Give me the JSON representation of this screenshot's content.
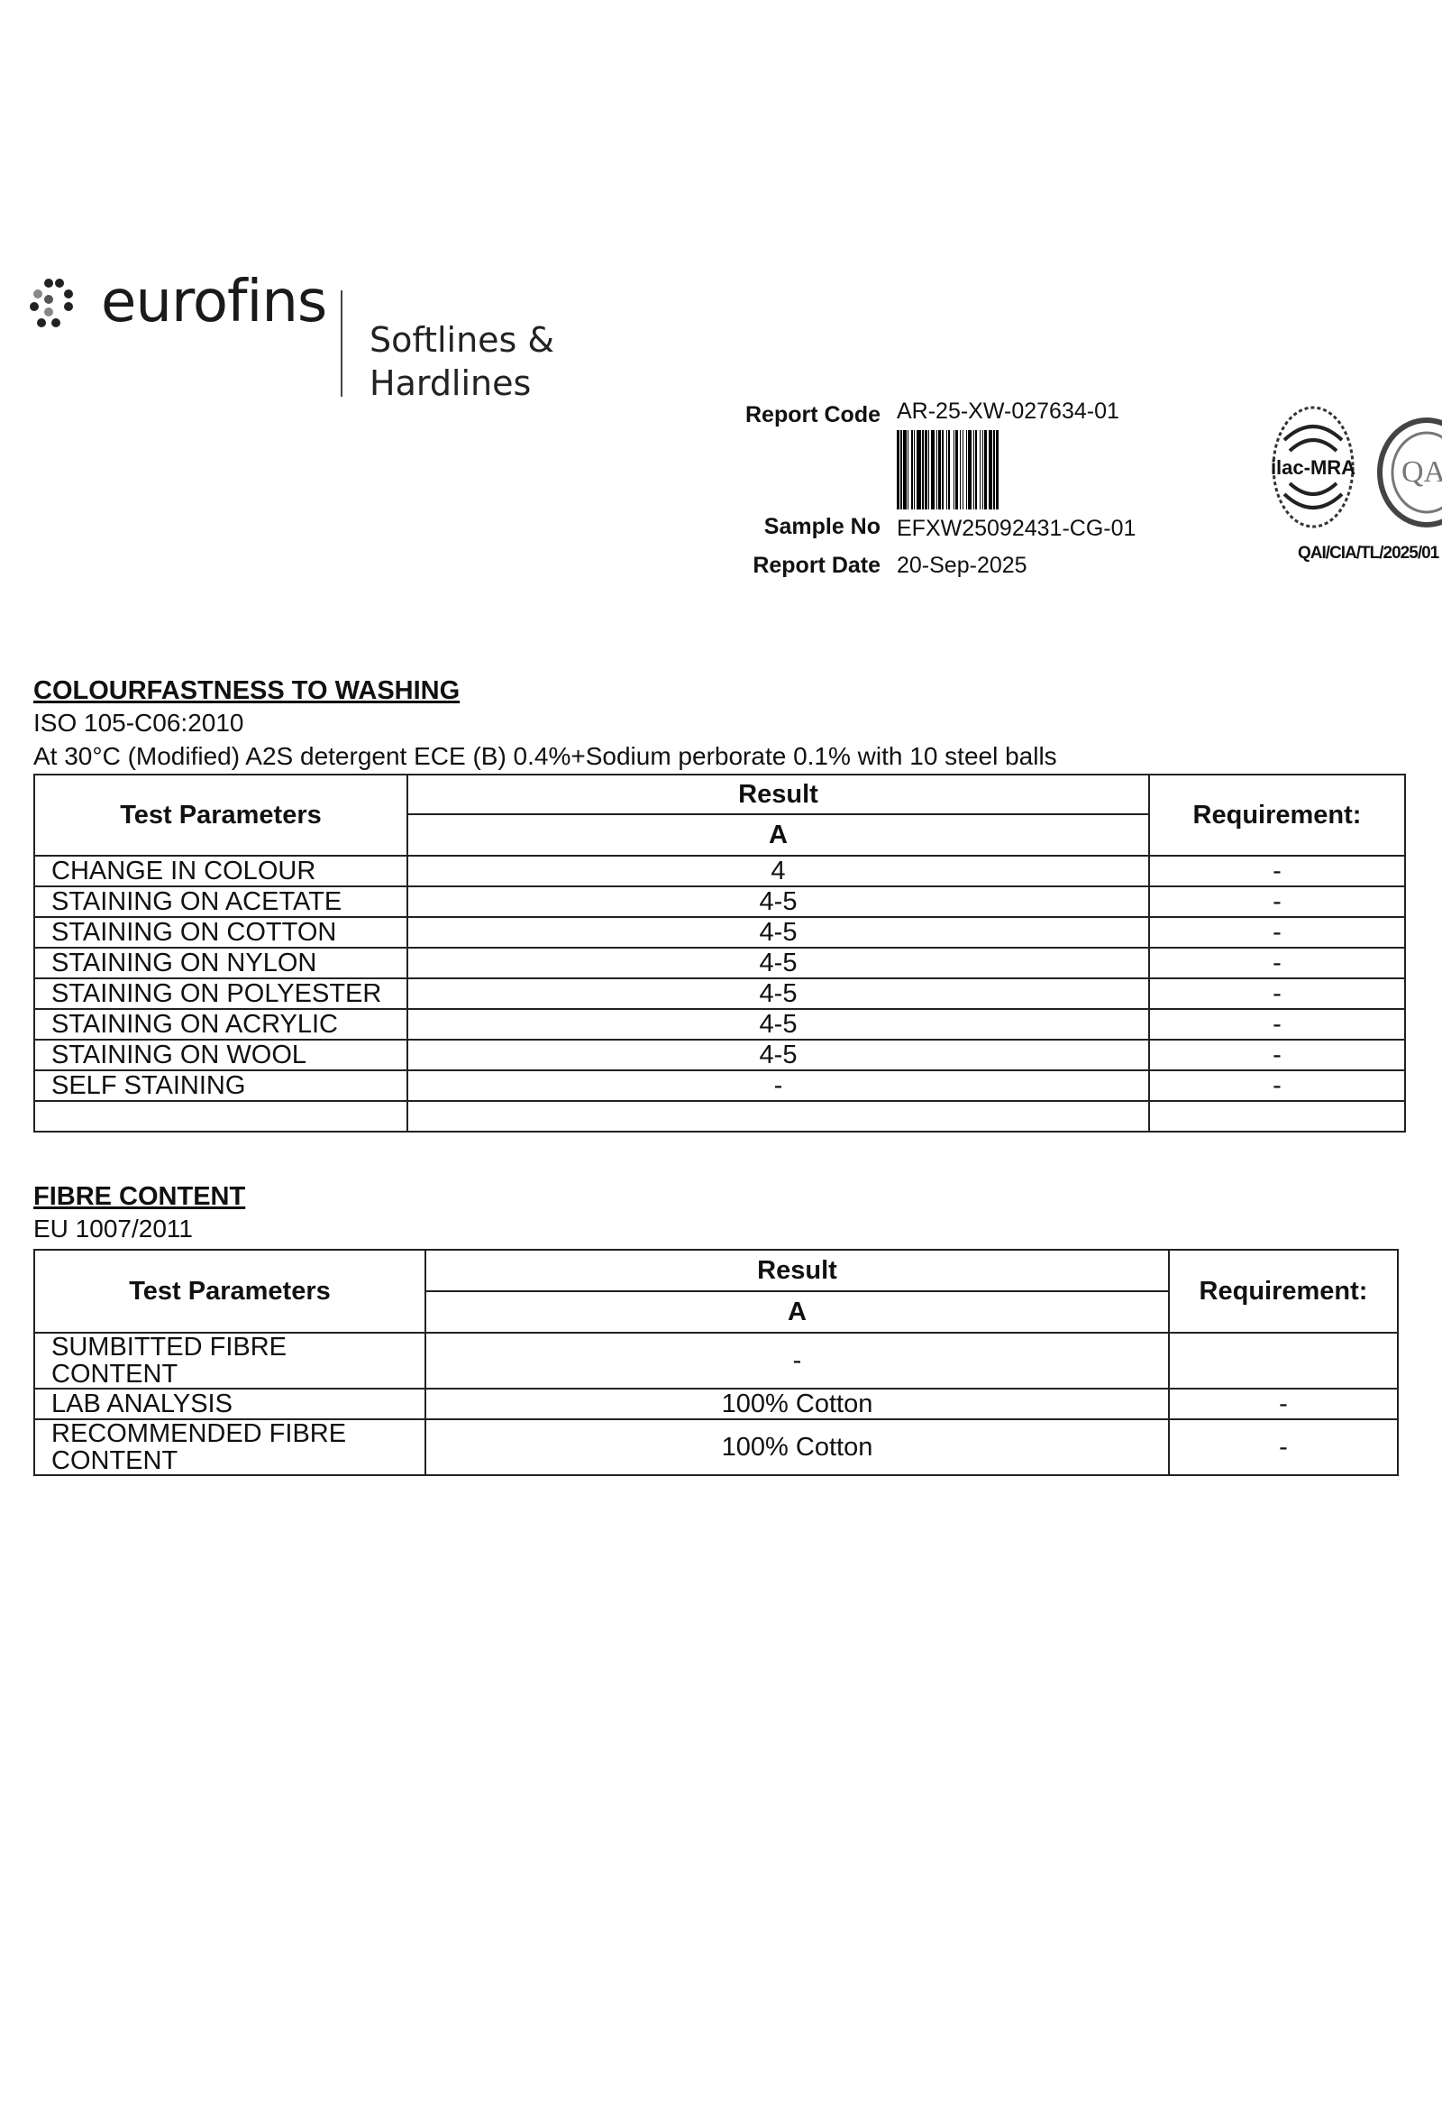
{
  "header": {
    "logo_text": "eurofins",
    "division_line1": "Softlines &",
    "division_line2": "Hardlines",
    "report_code_label": "Report Code",
    "report_code": "AR-25-XW-027634-01",
    "sample_no_label": "Sample No",
    "sample_no": "EFXW25092431-CG-01",
    "report_date_label": "Report Date",
    "report_date": "20-Sep-2025",
    "accreditation_logo_text": "ilac-MRA",
    "qa_logo_text": "QA",
    "accreditation_code": "QAI/CIA/TL/2025/01"
  },
  "colourfastness": {
    "title": "COLOURFASTNESS TO WASHING",
    "standard": "ISO 105-C06:2010",
    "conditions": "At 30°C (Modified) A2S detergent ECE (B) 0.4%+Sodium perborate 0.1% with 10 steel balls",
    "col_params": "Test Parameters",
    "col_result": "Result",
    "col_sample": "A",
    "col_requirement": "Requirement:",
    "rows": [
      {
        "param": "CHANGE IN COLOUR",
        "result": "4",
        "req": "-"
      },
      {
        "param": "STAINING ON ACETATE",
        "result": "4-5",
        "req": "-"
      },
      {
        "param": "STAINING ON COTTON",
        "result": "4-5",
        "req": "-"
      },
      {
        "param": "STAINING ON NYLON",
        "result": "4-5",
        "req": "-"
      },
      {
        "param": "STAINING ON POLYESTER",
        "result": "4-5",
        "req": "-"
      },
      {
        "param": "STAINING ON ACRYLIC",
        "result": "4-5",
        "req": "-"
      },
      {
        "param": "STAINING ON WOOL",
        "result": "4-5",
        "req": "-"
      },
      {
        "param": "SELF STAINING",
        "result": "-",
        "req": "-"
      }
    ]
  },
  "fibre": {
    "title": "FIBRE CONTENT",
    "standard": "EU 1007/2011",
    "col_params": "Test Parameters",
    "col_result": "Result",
    "col_sample": "A",
    "col_requirement": "Requirement:",
    "rows": [
      {
        "param": "SUMBITTED FIBRE CONTENT",
        "result": "-",
        "req": ""
      },
      {
        "param": "LAB ANALYSIS",
        "result": "100% Cotton",
        "req": "-"
      },
      {
        "param": "RECOMMENDED FIBRE CONTENT",
        "result": "100% Cotton",
        "req": "-"
      }
    ]
  }
}
